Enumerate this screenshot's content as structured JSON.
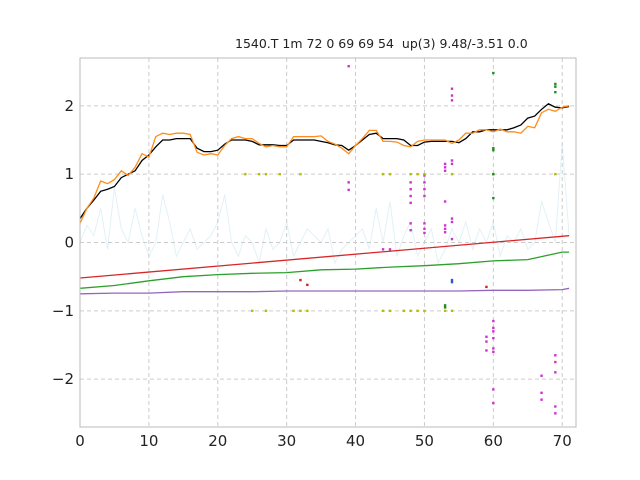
{
  "title": "1540.T 1m 72 0 69 69 54  up(3) 9.48/-3.51 0.0",
  "chart_data": {
    "type": "line",
    "title": "1540.T 1m 72 0 69 69 54  up(3) 9.48/-3.51 0.0",
    "xlabel": "",
    "ylabel": "",
    "xlim": [
      0,
      72
    ],
    "ylim": [
      -2.7,
      2.7
    ],
    "x_ticks": [
      0,
      10,
      20,
      30,
      40,
      50,
      60,
      70
    ],
    "y_ticks": [
      -2,
      -1,
      0,
      1,
      2
    ],
    "x_tick_labels": [
      "0",
      "10",
      "20",
      "30",
      "40",
      "50",
      "60",
      "70"
    ],
    "y_tick_labels": [
      "−2",
      "−1",
      "0",
      "1",
      "2"
    ],
    "grid": true,
    "series": [
      {
        "color": "#000000",
        "kind": "line",
        "x": [
          0,
          1,
          2,
          3,
          4,
          5,
          6,
          7,
          8,
          9,
          10,
          11,
          12,
          13,
          14,
          15,
          16,
          17,
          18,
          19,
          20,
          21,
          22,
          23,
          24,
          25,
          26,
          27,
          28,
          29,
          30,
          31,
          32,
          33,
          34,
          35,
          36,
          37,
          38,
          39,
          40,
          41,
          42,
          43,
          44,
          45,
          46,
          47,
          48,
          49,
          50,
          51,
          52,
          53,
          54,
          55,
          56,
          57,
          58,
          59,
          60,
          61,
          62,
          63,
          64,
          65,
          66,
          67,
          68,
          69,
          70,
          71
        ],
        "values": [
          0.35,
          0.5,
          0.62,
          0.75,
          0.78,
          0.82,
          0.95,
          1.0,
          1.05,
          1.2,
          1.28,
          1.4,
          1.5,
          1.5,
          1.52,
          1.52,
          1.52,
          1.38,
          1.33,
          1.33,
          1.35,
          1.44,
          1.5,
          1.5,
          1.5,
          1.48,
          1.43,
          1.43,
          1.43,
          1.42,
          1.42,
          1.5,
          1.5,
          1.5,
          1.5,
          1.48,
          1.46,
          1.43,
          1.42,
          1.35,
          1.42,
          1.5,
          1.58,
          1.6,
          1.52,
          1.52,
          1.52,
          1.5,
          1.42,
          1.42,
          1.47,
          1.48,
          1.48,
          1.48,
          1.48,
          1.46,
          1.52,
          1.62,
          1.62,
          1.65,
          1.65,
          1.65,
          1.65,
          1.68,
          1.72,
          1.82,
          1.85,
          1.95,
          2.03,
          1.98,
          1.97,
          1.99
        ]
      },
      {
        "color": "#ff8c1a",
        "kind": "line",
        "x": [
          0,
          1,
          2,
          3,
          4,
          5,
          6,
          7,
          8,
          9,
          10,
          11,
          12,
          13,
          14,
          15,
          16,
          17,
          18,
          19,
          20,
          21,
          22,
          23,
          24,
          25,
          26,
          27,
          28,
          29,
          30,
          31,
          32,
          33,
          34,
          35,
          36,
          37,
          38,
          39,
          40,
          41,
          42,
          43,
          44,
          45,
          46,
          47,
          48,
          49,
          50,
          51,
          52,
          53,
          54,
          55,
          56,
          57,
          58,
          59,
          60,
          61,
          62,
          63,
          64,
          65,
          66,
          67,
          68,
          69,
          70,
          71
        ],
        "values": [
          0.28,
          0.5,
          0.65,
          0.9,
          0.86,
          0.92,
          1.05,
          0.98,
          1.1,
          1.3,
          1.25,
          1.55,
          1.6,
          1.58,
          1.6,
          1.6,
          1.58,
          1.32,
          1.28,
          1.3,
          1.28,
          1.42,
          1.52,
          1.55,
          1.52,
          1.52,
          1.45,
          1.4,
          1.42,
          1.4,
          1.4,
          1.55,
          1.55,
          1.55,
          1.55,
          1.56,
          1.48,
          1.44,
          1.38,
          1.3,
          1.42,
          1.52,
          1.64,
          1.64,
          1.48,
          1.48,
          1.47,
          1.42,
          1.4,
          1.48,
          1.5,
          1.5,
          1.5,
          1.5,
          1.45,
          1.5,
          1.6,
          1.6,
          1.65,
          1.65,
          1.62,
          1.66,
          1.62,
          1.62,
          1.6,
          1.7,
          1.68,
          1.9,
          1.95,
          1.92,
          1.98,
          2.0
        ]
      },
      {
        "color": "#add8e6",
        "kind": "line-faint",
        "x": [
          0,
          1,
          2,
          3,
          4,
          5,
          6,
          7,
          8,
          9,
          10,
          11,
          12,
          13,
          14,
          15,
          16,
          17,
          18,
          19,
          20,
          21,
          22,
          23,
          24,
          25,
          26,
          27,
          28,
          29,
          30,
          31,
          32,
          33,
          34,
          35,
          36,
          37,
          38,
          39,
          40,
          41,
          42,
          43,
          44,
          45,
          46,
          47,
          48,
          49,
          50,
          51,
          52,
          53,
          54,
          55,
          56,
          57,
          58,
          59,
          60,
          61,
          62,
          63,
          64,
          65,
          66,
          67,
          68,
          69,
          70,
          71
        ],
        "values": [
          0.0,
          0.25,
          0.1,
          0.5,
          -0.1,
          0.8,
          0.2,
          0.0,
          0.5,
          0.1,
          -0.2,
          0.0,
          0.7,
          0.3,
          -0.2,
          0.0,
          0.2,
          -0.1,
          0.0,
          0.1,
          0.3,
          0.7,
          0.0,
          -0.2,
          0.1,
          0.0,
          -0.3,
          0.2,
          -0.1,
          0.0,
          0.3,
          -0.2,
          0.0,
          0.2,
          0.1,
          0.0,
          0.2,
          -0.3,
          -0.1,
          0.0,
          0.1,
          0.2,
          -0.1,
          0.5,
          0.0,
          0.6,
          -0.2,
          0.1,
          0.3,
          -0.2,
          0.0,
          0.2,
          -0.3,
          -0.1,
          0.2,
          0.0,
          0.3,
          -0.1,
          0.2,
          0.0,
          0.3,
          -0.2,
          0.1,
          0.0,
          0.2,
          -0.1,
          0.0,
          0.6,
          0.3,
          0.0,
          1.45,
          0.1
        ]
      },
      {
        "color": "#d62728",
        "kind": "line",
        "x": [
          0,
          71
        ],
        "values": [
          -0.52,
          0.1
        ]
      },
      {
        "color": "#2ca02c",
        "kind": "line",
        "x": [
          0,
          5,
          10,
          15,
          20,
          25,
          30,
          35,
          40,
          45,
          50,
          55,
          60,
          65,
          70,
          71
        ],
        "values": [
          -0.67,
          -0.63,
          -0.56,
          -0.5,
          -0.47,
          -0.45,
          -0.44,
          -0.4,
          -0.39,
          -0.36,
          -0.34,
          -0.31,
          -0.27,
          -0.25,
          -0.14,
          -0.14
        ]
      },
      {
        "color": "#9467bd",
        "kind": "line",
        "x": [
          0,
          5,
          10,
          15,
          20,
          25,
          30,
          35,
          40,
          45,
          50,
          55,
          60,
          65,
          70,
          71
        ],
        "values": [
          -0.75,
          -0.74,
          -0.74,
          -0.72,
          -0.72,
          -0.72,
          -0.71,
          -0.71,
          -0.71,
          -0.71,
          -0.71,
          -0.71,
          -0.7,
          -0.7,
          -0.69,
          -0.67
        ]
      },
      {
        "color": "#cc33cc",
        "kind": "scatter",
        "x": [
          39,
          39,
          39,
          44,
          45,
          48,
          48,
          48,
          48,
          48,
          48,
          50,
          50,
          50,
          50,
          50,
          50,
          50,
          53,
          53,
          53,
          53,
          53,
          53,
          53,
          54,
          54,
          54,
          54,
          54,
          54,
          54,
          54,
          59,
          59,
          59,
          60,
          60,
          60,
          60,
          60,
          60,
          60,
          60,
          67,
          67,
          67,
          69,
          69,
          69,
          69,
          69
        ],
        "values": [
          2.58,
          0.88,
          0.77,
          -0.1,
          -0.1,
          0.88,
          0.78,
          0.68,
          0.58,
          0.28,
          0.18,
          0.98,
          0.88,
          0.78,
          0.68,
          0.28,
          0.2,
          0.14,
          1.15,
          1.1,
          1.05,
          0.6,
          0.25,
          0.2,
          0.15,
          2.25,
          2.15,
          2.08,
          1.2,
          1.15,
          0.35,
          0.3,
          0.05,
          -1.38,
          -1.45,
          -1.58,
          -1.15,
          -1.25,
          -1.3,
          -1.4,
          -1.55,
          -1.6,
          -2.35,
          -2.15,
          -1.95,
          -2.2,
          -2.3,
          -1.65,
          -1.75,
          -1.9,
          -2.4,
          -2.5
        ]
      },
      {
        "color": "#bbbb00",
        "kind": "scatter",
        "x": [
          24,
          26,
          27,
          29,
          32,
          44,
          45,
          48,
          49,
          50,
          54,
          60,
          69,
          25,
          27,
          31,
          32,
          33,
          44,
          45,
          47,
          48,
          49,
          50,
          53,
          54
        ],
        "values": [
          1.0,
          1.0,
          1.0,
          1.0,
          1.0,
          1.0,
          1.0,
          1.0,
          1.0,
          1.0,
          1.0,
          1.0,
          1.0,
          -1.0,
          -1.0,
          -1.0,
          -1.0,
          -1.0,
          -1.0,
          -1.0,
          -1.0,
          -1.0,
          -1.0,
          -1.0,
          -1.0,
          -1.0
        ]
      },
      {
        "color": "#228b22",
        "kind": "scatter",
        "x": [
          60,
          60,
          60,
          60,
          60,
          69,
          69,
          69,
          53,
          53
        ],
        "values": [
          2.48,
          1.38,
          1.35,
          1.0,
          0.65,
          2.32,
          2.28,
          2.2,
          -0.92,
          -0.95
        ]
      },
      {
        "color": "#3355cc",
        "kind": "scatter",
        "x": [
          54,
          54
        ],
        "values": [
          -0.55,
          -0.58
        ]
      },
      {
        "color": "#cc2222",
        "kind": "scatter",
        "x": [
          32,
          33,
          59
        ],
        "values": [
          -0.55,
          -0.62,
          -0.65
        ]
      }
    ]
  }
}
